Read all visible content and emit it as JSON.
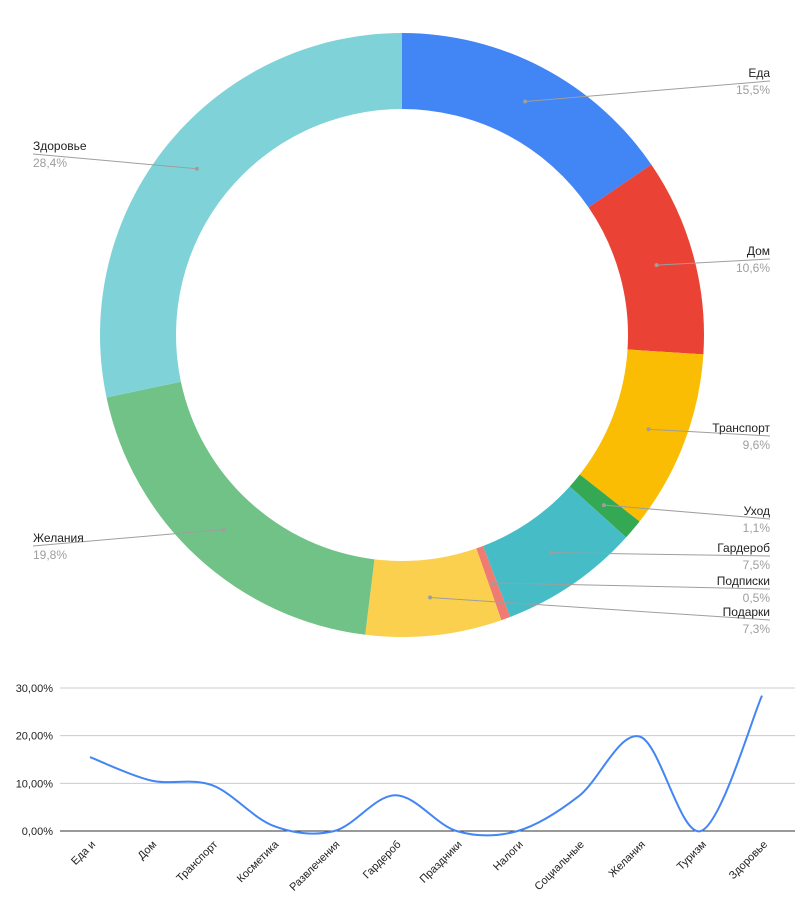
{
  "chart_data": [
    {
      "type": "pie",
      "style": "donut",
      "legend": "labels-with-leader-lines",
      "slices": [
        {
          "label": "Еда",
          "value": 15.5,
          "pct_label": "15,5%",
          "color": "#4285f4"
        },
        {
          "label": "Дом",
          "value": 10.6,
          "pct_label": "10,6%",
          "color": "#ea4335"
        },
        {
          "label": "Транспорт",
          "value": 9.6,
          "pct_label": "9,6%",
          "color": "#fbbc04"
        },
        {
          "label": "Уход",
          "value": 1.1,
          "pct_label": "1,1%",
          "color": "#34a853"
        },
        {
          "label": "Гардероб",
          "value": 7.5,
          "pct_label": "7,5%",
          "color": "#46bdc6"
        },
        {
          "label": "Подписки",
          "value": 0.5,
          "pct_label": "0,5%",
          "color": "#f07b72"
        },
        {
          "label": "Подарки",
          "value": 7.3,
          "pct_label": "7,3%",
          "color": "#fcd04f"
        },
        {
          "label": "Желания",
          "value": 19.8,
          "pct_label": "19,8%",
          "color": "#71c287"
        },
        {
          "label": "Здоровье",
          "value": 28.4,
          "pct_label": "28,4%",
          "color": "#7fd3d8"
        }
      ]
    },
    {
      "type": "line",
      "smooth": true,
      "grid": true,
      "line_color": "#4285f4",
      "ylim": [
        0,
        30
      ],
      "yticks": [
        "0,00%",
        "10,00%",
        "20,00%",
        "30,00%"
      ],
      "categories": [
        "Еда и",
        "Дом",
        "Транспорт",
        "Косметика",
        "Развлечения",
        "Гардероб",
        "Праздники",
        "Налоги",
        "Социальные",
        "Желания",
        "Туризм",
        "Здоровье"
      ],
      "values": [
        15.5,
        10.6,
        9.6,
        1.1,
        0,
        7.5,
        0,
        0,
        7.3,
        19.8,
        0,
        28.4
      ]
    }
  ]
}
